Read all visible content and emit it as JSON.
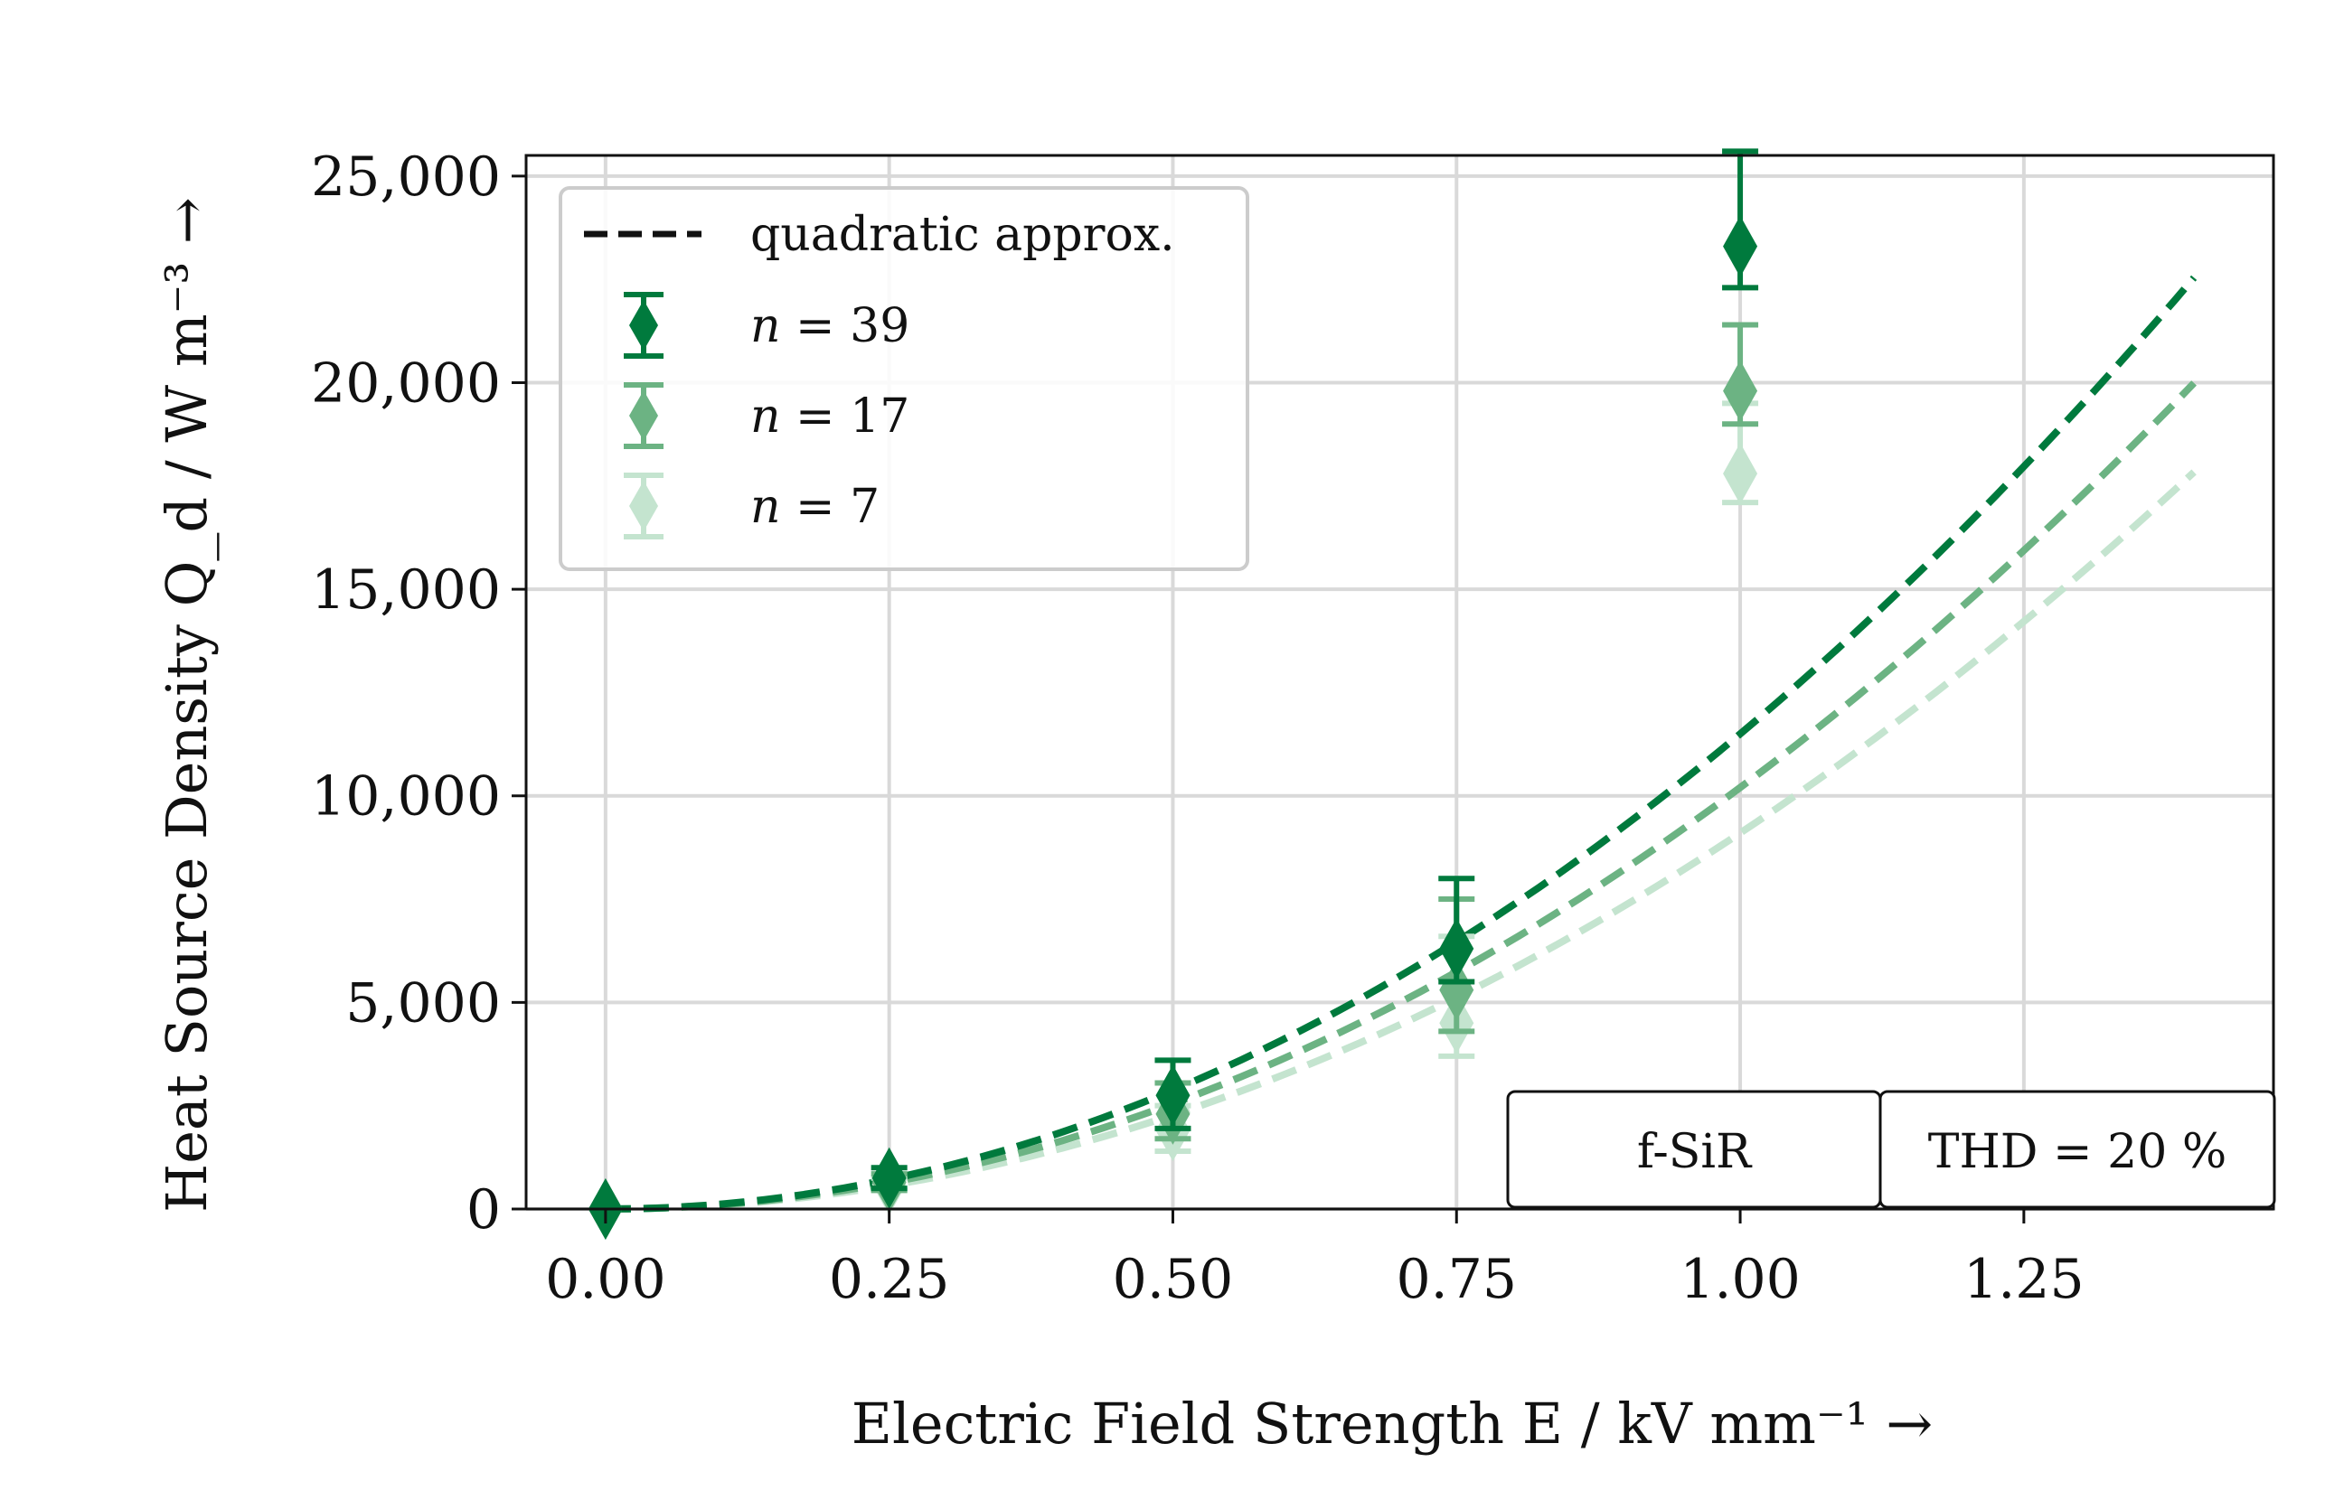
{
  "chart_data": {
    "type": "scatter",
    "title": "",
    "xlabel": "Electric Field Strength E / kV mm⁻¹ →",
    "ylabel": "Heat Source Density Q_d / W m⁻³ →",
    "xlim": [
      -0.07,
      1.47
    ],
    "ylim": [
      0,
      25500
    ],
    "grid": true,
    "x_ticks": [
      0.0,
      0.25,
      0.5,
      0.75,
      1.0,
      1.25
    ],
    "x_tick_labels": [
      "0.00",
      "0.25",
      "0.50",
      "0.75",
      "1.00",
      "1.25"
    ],
    "y_ticks": [
      0,
      5000,
      10000,
      15000,
      20000,
      25000
    ],
    "y_tick_labels": [
      "0",
      "5,000",
      "10,000",
      "15,000",
      "20,000",
      "25,000"
    ],
    "x": [
      0.0,
      0.25,
      0.5,
      0.75,
      1.0
    ],
    "series": [
      {
        "name": "n = 39",
        "label_var": "n",
        "label_value": "= 39",
        "color": "#007a3d",
        "values": [
          0,
          750,
          2750,
          6300,
          23300
        ],
        "err_low": [
          0,
          250,
          800,
          800,
          1000
        ],
        "err_high": [
          0,
          250,
          850,
          1700,
          2300
        ],
        "fit_coefficient": 11500
      },
      {
        "name": "n = 17",
        "label_var": "n",
        "label_value": "= 17",
        "color": "#6cb383",
        "values": [
          0,
          650,
          2300,
          5300,
          19800
        ],
        "err_low": [
          0,
          200,
          600,
          1000,
          800
        ],
        "err_high": [
          0,
          200,
          750,
          2200,
          1600
        ],
        "fit_coefficient": 10200
      },
      {
        "name": "n = 7",
        "label_var": "n",
        "label_value": "= 7",
        "color": "#c4e4cf",
        "values": [
          0,
          600,
          1900,
          4500,
          17800
        ],
        "err_low": [
          0,
          150,
          500,
          800,
          700
        ],
        "err_high": [
          0,
          150,
          600,
          2100,
          1700
        ],
        "fit_coefficient": 9100
      }
    ],
    "fit_x_range": [
      0.0,
      1.4
    ],
    "legend": {
      "placement": "top-left",
      "fit_label": "quadratic approx.",
      "fit_color": "#111111"
    },
    "annotations": [
      "f-SiR",
      "THD = 20 %"
    ]
  }
}
